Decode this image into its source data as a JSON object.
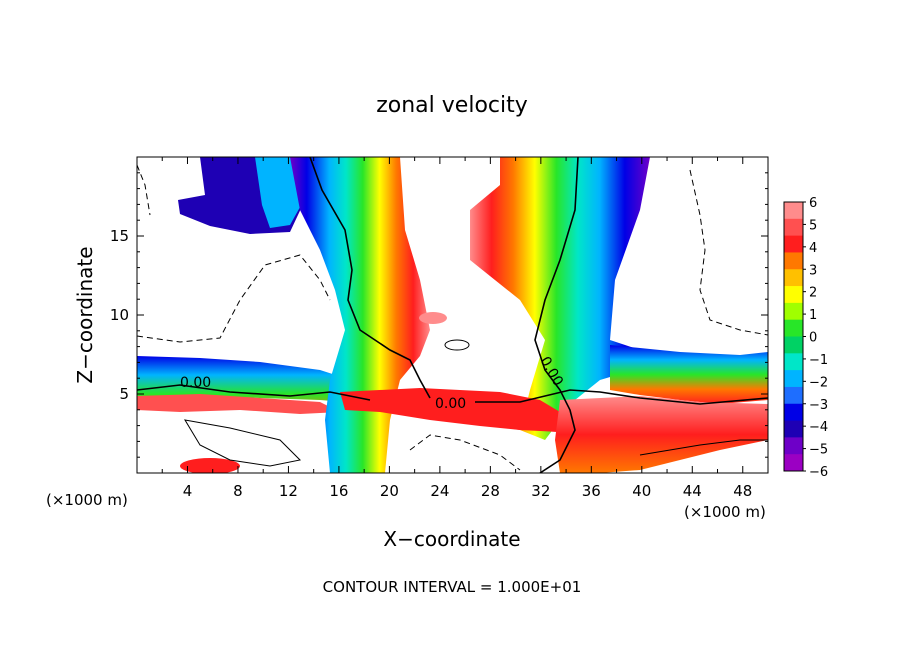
{
  "chart_data": {
    "type": "heatmap",
    "title": "zonal velocity",
    "xlabel": "X−coordinate",
    "ylabel": "Z−coordinate",
    "x_unit_left": "(×1000 m)",
    "x_unit_right": "(×1000 m)",
    "footer": "CONTOUR INTERVAL = 1.000E+01",
    "x_range": [
      0,
      50
    ],
    "y_range": [
      0,
      20
    ],
    "x_ticks": [
      4,
      8,
      12,
      16,
      20,
      24,
      28,
      32,
      36,
      40,
      44,
      48
    ],
    "x_tick_labels": [
      "4",
      "8",
      "12",
      "16",
      "20",
      "24",
      "28",
      "32",
      "36",
      "40",
      "44",
      "48"
    ],
    "y_ticks": [
      5,
      10,
      15
    ],
    "y_tick_labels": [
      "5",
      "10",
      "15"
    ],
    "colorbar": {
      "min": -6,
      "max": 6,
      "labels": [
        "6",
        "5",
        "4",
        "3",
        "2",
        "1",
        "0",
        "−1",
        "−2",
        "−3",
        "−4",
        "−5",
        "−6"
      ],
      "colors": [
        "#ff8c8c",
        "#ff5050",
        "#ff1e1e",
        "#ff7800",
        "#ffc000",
        "#ffff00",
        "#a0ff00",
        "#28e628",
        "#00d264",
        "#00e6c8",
        "#00b4ff",
        "#1e6eff",
        "#0000e6",
        "#1e00b4",
        "#6e00c8",
        "#9b00c3"
      ]
    },
    "contour_labels": [
      "0.00",
      "0.00",
      "0.00"
    ],
    "grid": false,
    "legend": "colorbar-right"
  }
}
